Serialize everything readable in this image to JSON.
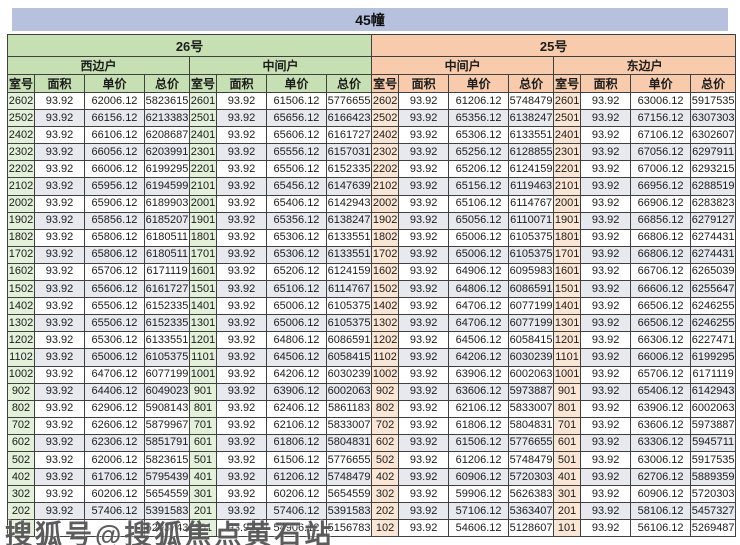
{
  "title": "45幢",
  "watermark": "搜狐号@搜狐焦点黄石站",
  "columns": [
    "室号",
    "面积",
    "单价",
    "总价"
  ],
  "buildings": [
    {
      "name": "26号",
      "units": [
        "西边户",
        "中间户"
      ]
    },
    {
      "name": "25号",
      "units": [
        "中间户",
        "东边户"
      ]
    }
  ],
  "colors": {
    "title_bar": "#b7c1dd",
    "green_header": "#c6e0b4",
    "green_room": "#e3f0da",
    "orange_header": "#f8cbad",
    "orange_room": "#fbe6d5",
    "shaded_row": "#e8e8ef",
    "border": "#404040"
  },
  "shaded_rows": [
    1,
    3,
    5,
    7,
    9,
    11,
    13,
    15,
    17,
    20,
    22,
    24
  ],
  "rows": [
    [
      "2602",
      "93.92",
      "62006.12",
      "5823615",
      "2601",
      "93.92",
      "61506.12",
      "5776655",
      "2602",
      "93.92",
      "61206.12",
      "5748479",
      "2601",
      "93.92",
      "63006.12",
      "5917535"
    ],
    [
      "2502",
      "93.92",
      "66156.12",
      "6213383",
      "2501",
      "93.92",
      "65656.12",
      "6166423",
      "2502",
      "93.92",
      "65356.12",
      "6138247",
      "2501",
      "93.92",
      "67156.12",
      "6307303"
    ],
    [
      "2402",
      "93.92",
      "66106.12",
      "6208687",
      "2401",
      "93.92",
      "65606.12",
      "6161727",
      "2402",
      "93.92",
      "65306.12",
      "6133551",
      "2401",
      "93.92",
      "67106.12",
      "6302607"
    ],
    [
      "2302",
      "93.92",
      "66056.12",
      "6203991",
      "2301",
      "93.92",
      "65556.12",
      "6157031",
      "2302",
      "93.92",
      "65256.12",
      "6128855",
      "2301",
      "93.92",
      "67056.12",
      "6297911"
    ],
    [
      "2202",
      "93.92",
      "66006.12",
      "6199295",
      "2201",
      "93.92",
      "65506.12",
      "6152335",
      "2202",
      "93.92",
      "65206.12",
      "6124159",
      "2201",
      "93.92",
      "67006.12",
      "6293215"
    ],
    [
      "2102",
      "93.92",
      "65956.12",
      "6194599",
      "2101",
      "93.92",
      "65456.12",
      "6147639",
      "2102",
      "93.92",
      "65156.12",
      "6119463",
      "2101",
      "93.92",
      "66956.12",
      "6288519"
    ],
    [
      "2002",
      "93.92",
      "65906.12",
      "6189903",
      "2001",
      "93.92",
      "65406.12",
      "6142943",
      "2002",
      "93.92",
      "65106.12",
      "6114767",
      "2001",
      "93.92",
      "66906.12",
      "6283823"
    ],
    [
      "1902",
      "93.92",
      "65856.12",
      "6185207",
      "1901",
      "93.92",
      "65356.12",
      "6138247",
      "1902",
      "93.92",
      "65056.12",
      "6110071",
      "1901",
      "93.92",
      "66856.12",
      "6279127"
    ],
    [
      "1802",
      "93.92",
      "65806.12",
      "6180511",
      "1801",
      "93.92",
      "65306.12",
      "6133551",
      "1802",
      "93.92",
      "65006.12",
      "6105375",
      "1801",
      "93.92",
      "66806.12",
      "6274431"
    ],
    [
      "1702",
      "93.92",
      "65806.12",
      "6180511",
      "1701",
      "93.92",
      "65306.12",
      "6133551",
      "1702",
      "93.92",
      "65006.12",
      "6105375",
      "1701",
      "93.92",
      "66806.12",
      "6274431"
    ],
    [
      "1602",
      "93.92",
      "65706.12",
      "6171119",
      "1601",
      "93.92",
      "65206.12",
      "6124159",
      "1602",
      "93.92",
      "64906.12",
      "6095983",
      "1601",
      "93.92",
      "66706.12",
      "6265039"
    ],
    [
      "1502",
      "93.92",
      "65606.12",
      "6161727",
      "1501",
      "93.92",
      "65106.12",
      "6114767",
      "1502",
      "93.92",
      "64806.12",
      "6086591",
      "1501",
      "93.92",
      "66606.12",
      "6255647"
    ],
    [
      "1402",
      "93.92",
      "65506.12",
      "6152335",
      "1401",
      "93.92",
      "65006.12",
      "6105375",
      "1402",
      "93.92",
      "64706.12",
      "6077199",
      "1401",
      "93.92",
      "66506.12",
      "6246255"
    ],
    [
      "1302",
      "93.92",
      "65506.12",
      "6152335",
      "1301",
      "93.92",
      "65006.12",
      "6105375",
      "1302",
      "93.92",
      "64706.12",
      "6077199",
      "1301",
      "93.92",
      "66506.12",
      "6246255"
    ],
    [
      "1202",
      "93.92",
      "65306.12",
      "6133551",
      "1201",
      "93.92",
      "64806.12",
      "6086591",
      "1202",
      "93.92",
      "64506.12",
      "6058415",
      "1201",
      "93.92",
      "66306.12",
      "6227471"
    ],
    [
      "1102",
      "93.92",
      "65006.12",
      "6105375",
      "1101",
      "93.92",
      "64506.12",
      "6058415",
      "1102",
      "93.92",
      "64206.12",
      "6030239",
      "1101",
      "93.92",
      "66006.12",
      "6199295"
    ],
    [
      "1002",
      "93.92",
      "64706.12",
      "6077199",
      "1001",
      "93.92",
      "64206.12",
      "6030239",
      "1002",
      "93.92",
      "63906.12",
      "6002063",
      "1001",
      "93.92",
      "65706.12",
      "6171119"
    ],
    [
      "902",
      "93.92",
      "64406.12",
      "6049023",
      "901",
      "93.92",
      "63906.12",
      "6002063",
      "902",
      "93.92",
      "63606.12",
      "5973887",
      "901",
      "93.92",
      "65406.12",
      "6142943"
    ],
    [
      "802",
      "93.92",
      "62906.12",
      "5908143",
      "801",
      "93.92",
      "62406.12",
      "5861183",
      "802",
      "93.92",
      "62106.12",
      "5833007",
      "801",
      "93.92",
      "63906.12",
      "6002063"
    ],
    [
      "702",
      "93.92",
      "62606.12",
      "5879967",
      "701",
      "93.92",
      "62106.12",
      "5833007",
      "702",
      "93.92",
      "61806.12",
      "5804831",
      "701",
      "93.92",
      "63606.12",
      "5973887"
    ],
    [
      "602",
      "93.92",
      "62306.12",
      "5851791",
      "601",
      "93.92",
      "61806.12",
      "5804831",
      "602",
      "93.92",
      "61506.12",
      "5776655",
      "601",
      "93.92",
      "63306.12",
      "5945711"
    ],
    [
      "502",
      "93.92",
      "62006.12",
      "5823615",
      "501",
      "93.92",
      "61506.12",
      "5776655",
      "502",
      "93.92",
      "61206.12",
      "5748479",
      "501",
      "93.92",
      "63006.12",
      "5917535"
    ],
    [
      "402",
      "93.92",
      "61706.12",
      "5795439",
      "401",
      "93.92",
      "61206.12",
      "5748479",
      "402",
      "93.92",
      "60906.12",
      "5720303",
      "401",
      "93.92",
      "62706.12",
      "5889359"
    ],
    [
      "302",
      "93.92",
      "60206.12",
      "5654559",
      "301",
      "93.92",
      "60206.12",
      "5654559",
      "302",
      "93.92",
      "59906.12",
      "5626383",
      "301",
      "93.92",
      "60906.12",
      "5720303"
    ],
    [
      "202",
      "93.92",
      "57406.12",
      "5391583",
      "201",
      "93.92",
      "57406.12",
      "5391583",
      "202",
      "93.92",
      "57106.12",
      "5363407",
      "201",
      "93.92",
      "58106.12",
      "5457327"
    ],
    [
      "",
      "",
      "",
      "5203743",
      "101",
      "93.92",
      "54906.12",
      "5156783",
      "102",
      "93.92",
      "54606.12",
      "5128607",
      "101",
      "93.92",
      "56106.12",
      "5269487"
    ]
  ]
}
